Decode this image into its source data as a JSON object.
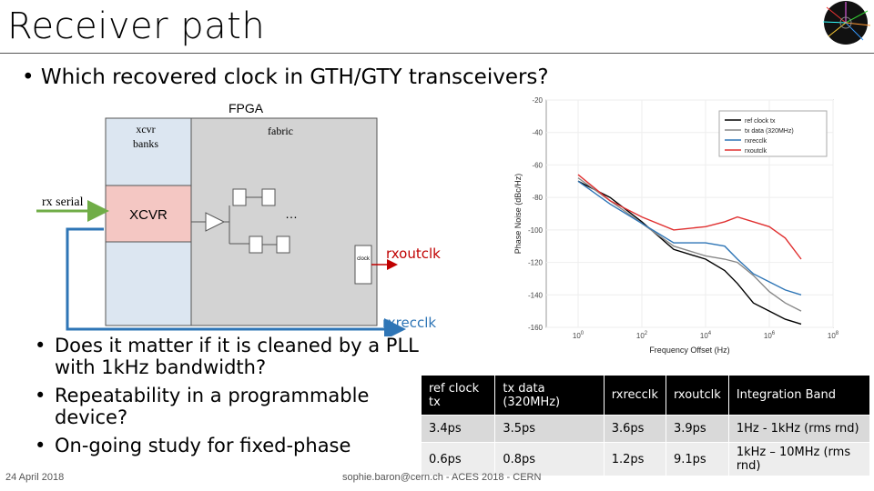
{
  "slide": {
    "title": "Receiver path",
    "main_bullet": "Which recovered clock in GTH/GTY transceivers?",
    "bullets": [
      "Does it matter if it is cleaned by a PLL with 1kHz bandwidth?",
      "Repeatability in a programmable device?",
      "On-going study for fixed-phase"
    ],
    "footer_date": "24 April 2018",
    "footer_center": "sophie.baron@cern.ch - ACES 2018 - CERN"
  },
  "diagram": {
    "fpga_label": "FPGA",
    "xcvr_banks_label": "xcvr banks",
    "fabric_label": "fabric",
    "rx_serial_label": "rx serial",
    "xcvr_block_label": "XCVR",
    "ellipsis": "…",
    "clock_label": "clock",
    "rxoutclk_label": "rxoutclk",
    "rxrecclk_label": "rxrecclk",
    "colors": {
      "fabric": "#d3d3d3",
      "banks": "#dce6f1",
      "xcvr": "#f4c7c3",
      "arrow_green": "#70ad47",
      "arrow_blue": "#2e75b6",
      "clock_label": "#c00000"
    }
  },
  "chart_data": {
    "type": "line",
    "ylabel": "Phase Noise (dBc/Hz)",
    "xlabel": "Frequency Offset (Hz)",
    "yticks": [
      "-20",
      "-40",
      "-60",
      "-80",
      "-100",
      "-120",
      "-140",
      "-160"
    ],
    "xticks": [
      "0",
      "2",
      "4",
      "6",
      "8"
    ],
    "xlim": [
      0,
      9
    ],
    "ylim": [
      -160,
      -20
    ],
    "legend_position": "top-right",
    "series": [
      {
        "name": "ref clock tx",
        "color": "#000000",
        "x": [
          1,
          2,
          3,
          4,
          5,
          5.6,
          6,
          6.5,
          7,
          7.5,
          8
        ],
        "y": [
          -70,
          -80,
          -95,
          -112,
          -118,
          -125,
          -133,
          -145,
          -150,
          -155,
          -158
        ]
      },
      {
        "name": "tx data (320MHz)",
        "color": "#888888",
        "x": [
          1,
          2,
          3,
          4,
          5,
          5.6,
          6,
          6.5,
          7,
          7.5,
          8
        ],
        "y": [
          -68,
          -82,
          -96,
          -110,
          -116,
          -118,
          -120,
          -128,
          -138,
          -145,
          -150
        ]
      },
      {
        "name": "rxrecclk",
        "color": "#2e75b6",
        "x": [
          1,
          2,
          3,
          4,
          5,
          5.6,
          6,
          6.5,
          7,
          7.5,
          8
        ],
        "y": [
          -70,
          -84,
          -96,
          -108,
          -108,
          -110,
          -118,
          -127,
          -132,
          -137,
          -140
        ]
      },
      {
        "name": "rxoutclk",
        "color": "#e03030",
        "x": [
          1,
          2,
          3,
          4,
          5,
          5.6,
          6,
          6.5,
          7,
          7.5,
          8
        ],
        "y": [
          -66,
          -82,
          -92,
          -100,
          -98,
          -95,
          -92,
          -95,
          -98,
          -105,
          -118
        ]
      }
    ]
  },
  "table": {
    "headers": [
      "ref clock tx",
      "tx data (320MHz)",
      "rxrecclk",
      "rxoutclk",
      "Integration Band"
    ],
    "rows": [
      [
        "3.4ps",
        "3.5ps",
        "3.6ps",
        "3.9ps",
        "1Hz - 1kHz (rms rnd)"
      ],
      [
        "0.6ps",
        "0.8ps",
        "1.2ps",
        "9.1ps",
        "1kHz – 10MHz (rms rnd)"
      ]
    ]
  }
}
